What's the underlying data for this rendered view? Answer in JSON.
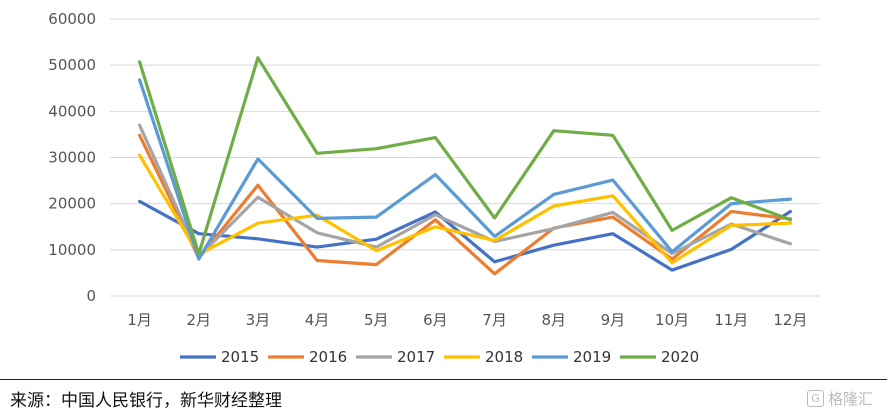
{
  "chart_data": {
    "type": "line",
    "title": "",
    "xlabel": "",
    "ylabel": "",
    "categories": [
      "1月",
      "2月",
      "3月",
      "4月",
      "5月",
      "6月",
      "7月",
      "8月",
      "9月",
      "10月",
      "11月",
      "12月"
    ],
    "ylim": [
      0,
      60000
    ],
    "yticks": [
      0,
      10000,
      20000,
      30000,
      40000,
      50000,
      60000
    ],
    "grid": true,
    "legend_position": "bottom",
    "series": [
      {
        "name": "2015",
        "color": "#4472c4",
        "values": [
          20500,
          13500,
          12400,
          10600,
          12300,
          18200,
          7400,
          11000,
          13500,
          5600,
          10100,
          18300
        ]
      },
      {
        "name": "2016",
        "color": "#ed7d31",
        "values": [
          34800,
          8200,
          24000,
          7700,
          6800,
          16500,
          4800,
          14700,
          17100,
          8000,
          18300,
          16700
        ]
      },
      {
        "name": "2017",
        "color": "#a5a5a5",
        "values": [
          37000,
          8500,
          21400,
          13700,
          10600,
          17600,
          11800,
          14600,
          18100,
          9200,
          15600,
          11300
        ]
      },
      {
        "name": "2018",
        "color": "#ffc000",
        "values": [
          30500,
          9000,
          15800,
          17500,
          9800,
          15000,
          12000,
          19500,
          21700,
          7200,
          15300,
          15800
        ]
      },
      {
        "name": "2019",
        "color": "#5b9bd5",
        "values": [
          46800,
          8000,
          29700,
          16800,
          17100,
          26300,
          12900,
          22000,
          25100,
          9600,
          20000,
          21000
        ]
      },
      {
        "name": "2020",
        "color": "#70ad47",
        "values": [
          50700,
          9100,
          51600,
          30900,
          31900,
          34300,
          16900,
          35800,
          34800,
          14200,
          21300,
          16500
        ]
      }
    ]
  },
  "source_text": "来源：中国人民银行，新华财经整理",
  "watermark_text": "格隆汇"
}
